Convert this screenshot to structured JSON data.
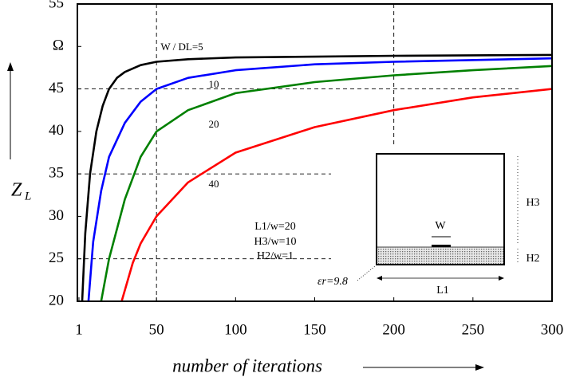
{
  "chart_data": {
    "type": "line",
    "x_label": "number of iterations",
    "y_label": "Z",
    "y_label_sub": "L",
    "xlim": [
      0,
      300
    ],
    "ylim": [
      20,
      55
    ],
    "xticks": [
      1,
      50,
      100,
      150,
      200,
      250,
      300
    ],
    "yticks": [
      20,
      25,
      30,
      35,
      40,
      45,
      {
        "value": 50,
        "label": "Ω"
      },
      55
    ],
    "series": [
      {
        "name": "W / DL=5",
        "color": "#000000",
        "x": [
          3,
          5,
          8,
          12,
          16,
          20,
          25,
          30,
          40,
          50,
          70,
          100,
          150,
          200,
          300
        ],
        "values": [
          20,
          28,
          35,
          40,
          43,
          45,
          46.3,
          47,
          47.8,
          48.2,
          48.5,
          48.7,
          48.8,
          48.9,
          49
        ]
      },
      {
        "name": "10",
        "color": "#0000ff",
        "x": [
          7,
          10,
          15,
          20,
          30,
          40,
          50,
          70,
          100,
          150,
          200,
          300
        ],
        "values": [
          20,
          27,
          33,
          37,
          41,
          43.5,
          45,
          46.3,
          47.2,
          47.9,
          48.2,
          48.6
        ]
      },
      {
        "name": "20",
        "color": "#008000",
        "x": [
          15,
          20,
          30,
          40,
          50,
          70,
          100,
          150,
          200,
          250,
          300
        ],
        "values": [
          20,
          25,
          32,
          37,
          40,
          42.5,
          44.5,
          45.8,
          46.6,
          47.2,
          47.7
        ]
      },
      {
        "name": "40",
        "color": "#ff0000",
        "x": [
          28,
          35,
          40,
          50,
          70,
          100,
          150,
          200,
          250,
          300
        ],
        "values": [
          20,
          24.5,
          26.8,
          30,
          34,
          37.5,
          40.5,
          42.5,
          44,
          45
        ]
      }
    ],
    "annotations": [
      "L1/w=20",
      "H3/w=10",
      "H2/w=1"
    ],
    "inset": {
      "w": "W",
      "h3": "H3",
      "h2": "H2",
      "l1": "L1",
      "eps": "εr=9.8"
    }
  }
}
